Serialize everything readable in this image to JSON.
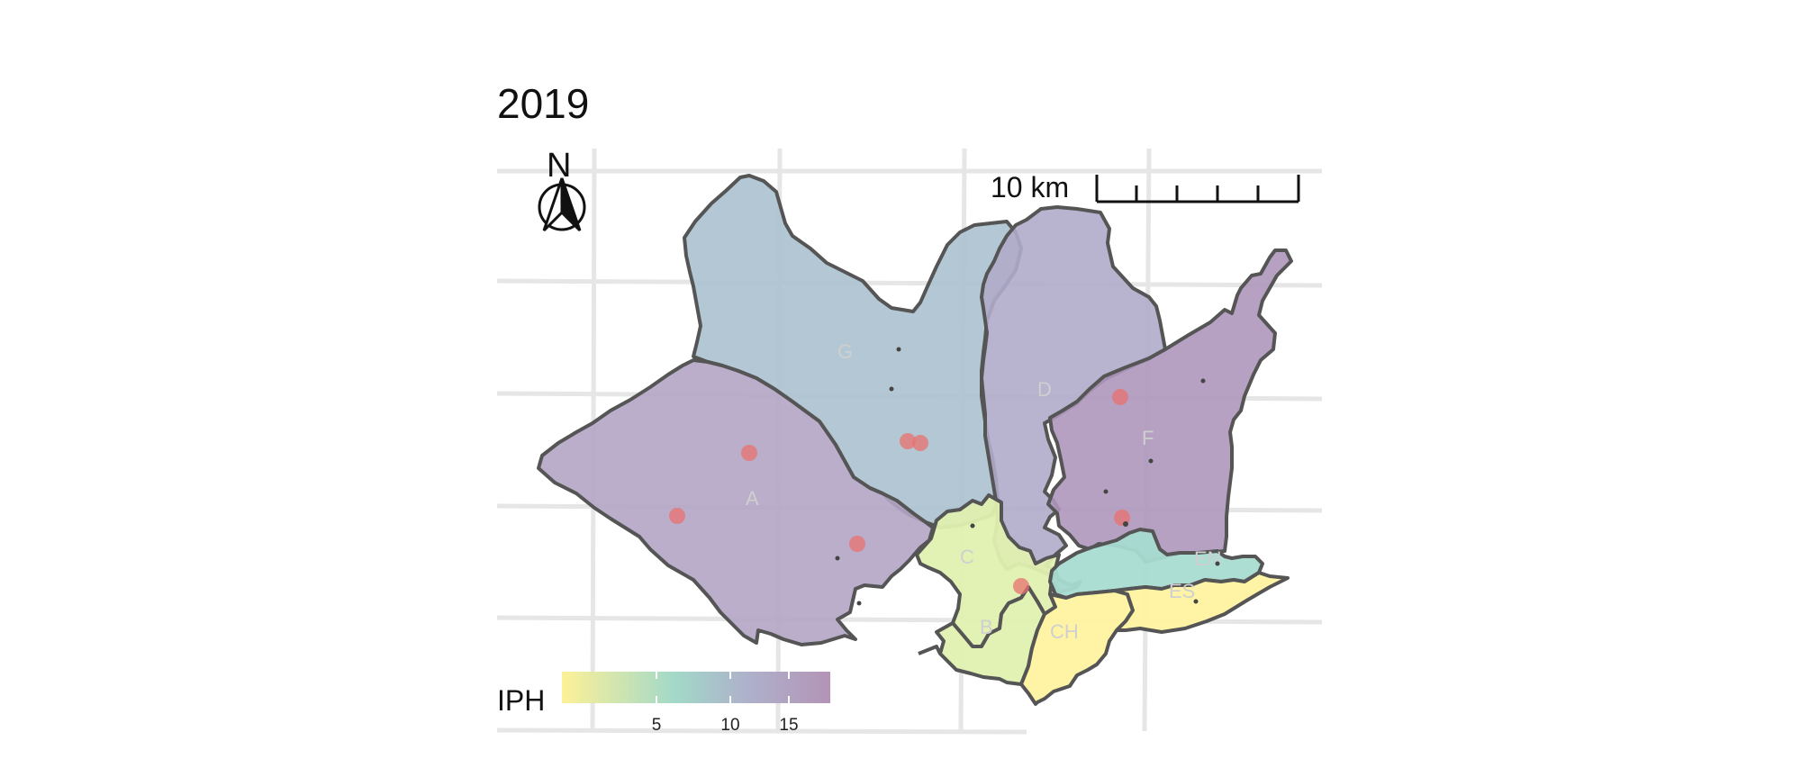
{
  "map": {
    "title": "2019",
    "north_arrow": {
      "letter": "N",
      "icon": "north-arrow-icon"
    },
    "scale_bar": {
      "label": "10 km"
    },
    "legend": {
      "title": "IPH",
      "ticks": [
        "5",
        "10",
        "15"
      ],
      "colors": [
        "#fdf198",
        "#a2d9c8",
        "#aeb0cb",
        "#b394b6"
      ]
    },
    "regions": [
      {
        "label": "A",
        "color": "#b2a5c4"
      },
      {
        "label": "D",
        "color": "#b0abc9"
      },
      {
        "label": "F",
        "color": "#ae97bc"
      },
      {
        "label": "C",
        "color": "#e0f0b0"
      },
      {
        "label": "B",
        "color": "#e0f0b0"
      },
      {
        "label": "CH",
        "color": "#fff3a0"
      },
      {
        "label": "ES",
        "color": "#fff3a0"
      },
      {
        "label": "EN",
        "color": "#a8dcd2"
      },
      {
        "label": "G",
        "color": "#abc2cf"
      }
    ]
  }
}
